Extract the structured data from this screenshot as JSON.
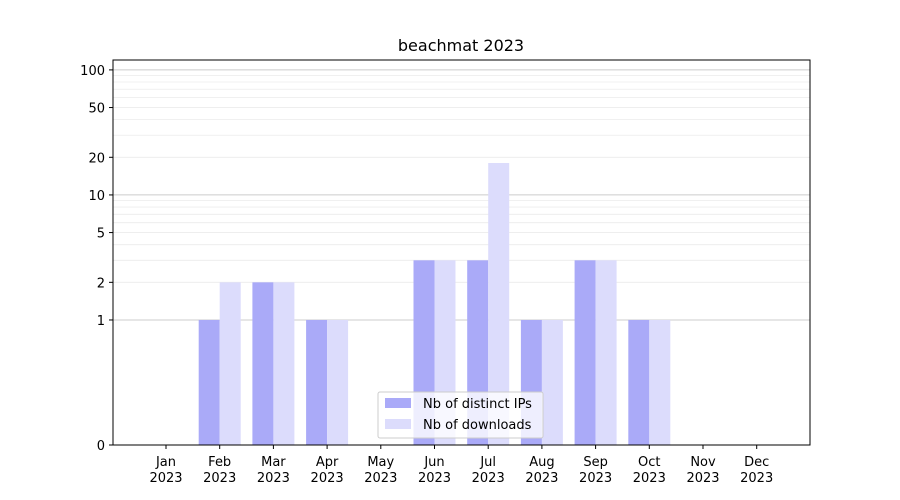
{
  "chart_data": {
    "type": "bar",
    "title": "beachmat 2023",
    "xlabel": "",
    "ylabel": "",
    "yscale": "symlog",
    "ylim": [
      0,
      120
    ],
    "y_ticks": [
      0,
      1,
      2,
      5,
      10,
      20,
      50,
      100
    ],
    "grid": "horizontal",
    "legend_position": "bottom-center",
    "categories": [
      [
        "Jan",
        "2023"
      ],
      [
        "Feb",
        "2023"
      ],
      [
        "Mar",
        "2023"
      ],
      [
        "Apr",
        "2023"
      ],
      [
        "May",
        "2023"
      ],
      [
        "Jun",
        "2023"
      ],
      [
        "Jul",
        "2023"
      ],
      [
        "Aug",
        "2023"
      ],
      [
        "Sep",
        "2023"
      ],
      [
        "Oct",
        "2023"
      ],
      [
        "Nov",
        "2023"
      ],
      [
        "Dec",
        "2023"
      ]
    ],
    "series": [
      {
        "name": "Nb of distinct IPs",
        "color": "#aaaaf8",
        "values": [
          0,
          1,
          2,
          1,
          0,
          3,
          3,
          1,
          3,
          1,
          0,
          0
        ]
      },
      {
        "name": "Nb of downloads",
        "color": "#dcdcfc",
        "values": [
          0,
          2,
          2,
          1,
          0,
          3,
          18,
          1,
          3,
          1,
          0,
          0
        ]
      }
    ]
  }
}
